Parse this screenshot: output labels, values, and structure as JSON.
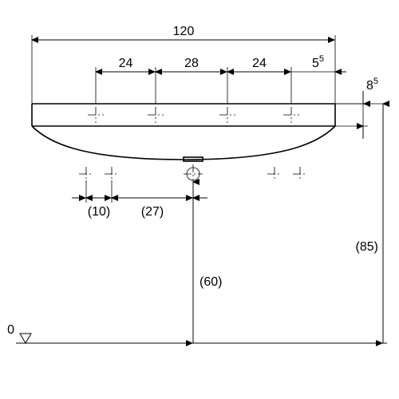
{
  "type": "engineering-dimension-drawing",
  "units": "cm",
  "colors": {
    "stroke": "#000000",
    "background": "#ffffff"
  },
  "fontsize": {
    "normal": 16,
    "sup": 11
  },
  "dims": {
    "overall_w": "120",
    "seg_a": "24",
    "seg_b": "28",
    "seg_c": "24",
    "edge": "5",
    "edge_sup": "5",
    "lip": "8",
    "lip_sup": "5",
    "hole_off": "(10)",
    "hole_ctr": "(27)",
    "drain_h": "(60)",
    "top_h": "(85)",
    "datum": "0"
  },
  "geom": {
    "L": 40,
    "R": 420,
    "yDim1": 50,
    "yDim2": 90,
    "yTop": 130,
    "yLip": 158,
    "yUnder": 178,
    "yBot": 200,
    "yHoles": 218,
    "yHDim": 248,
    "yFloor": 430,
    "xRight1": 455,
    "xRight2": 480,
    "taps": [
      120,
      195,
      285,
      365
    ],
    "holePairs": [
      [
        108,
        140
      ],
      [
        344,
        376
      ]
    ],
    "drainX": 242
  }
}
